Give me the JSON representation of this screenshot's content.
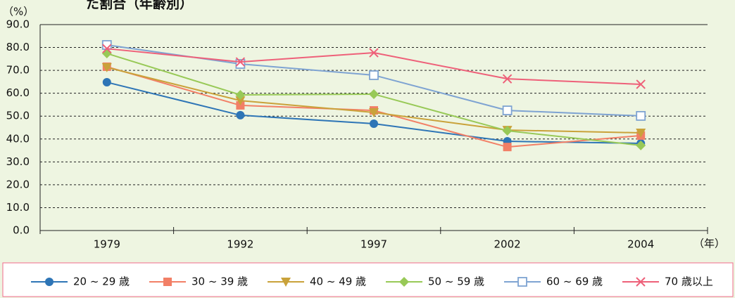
{
  "chart_data": {
    "type": "line",
    "title": "た割合（年齢別）",
    "y_label": "（%）",
    "x_label": "（年）",
    "categories": [
      "1979",
      "1992",
      "1997",
      "2002",
      "2004"
    ],
    "ylim": [
      0,
      90
    ],
    "yticks": [
      {
        "value": 0,
        "label": "0.0"
      },
      {
        "value": 10,
        "label": "10.0"
      },
      {
        "value": 20,
        "label": "20.0"
      },
      {
        "value": 30,
        "label": "30.0"
      },
      {
        "value": 40,
        "label": "40.0"
      },
      {
        "value": 50,
        "label": "50.0"
      },
      {
        "value": 60,
        "label": "60.0"
      },
      {
        "value": 70,
        "label": "70.0"
      },
      {
        "value": 80,
        "label": "80.0"
      },
      {
        "value": 90,
        "label": "90.0"
      }
    ],
    "grid": true,
    "series": [
      {
        "name": "20 ~ 29 歳",
        "color": "#2e75b6",
        "marker": "circle",
        "values": [
          64.8,
          50.4,
          46.7,
          39.0,
          38.1
        ]
      },
      {
        "name": "30 ~ 39 歳",
        "color": "#f27f66",
        "marker": "square",
        "values": [
          71.6,
          54.7,
          52.5,
          36.5,
          41.5
        ]
      },
      {
        "name": "40 ~ 49 歳",
        "color": "#c9a23a",
        "marker": "triangle-down",
        "values": [
          71.3,
          56.8,
          51.6,
          43.9,
          42.7
        ]
      },
      {
        "name": "50 ~ 59 歳",
        "color": "#98c957",
        "marker": "diamond",
        "values": [
          77.4,
          59.3,
          59.6,
          43.6,
          37.2
        ]
      },
      {
        "name": "60 ~ 69 歳",
        "color": "#7ea3d2",
        "marker": "hollow-square",
        "values": [
          81.1,
          72.8,
          67.9,
          52.5,
          50.1
        ]
      },
      {
        "name": "70 歳以上",
        "color": "#ee6079",
        "marker": "cross",
        "values": [
          79.5,
          73.7,
          77.7,
          66.3,
          63.9
        ]
      }
    ]
  }
}
